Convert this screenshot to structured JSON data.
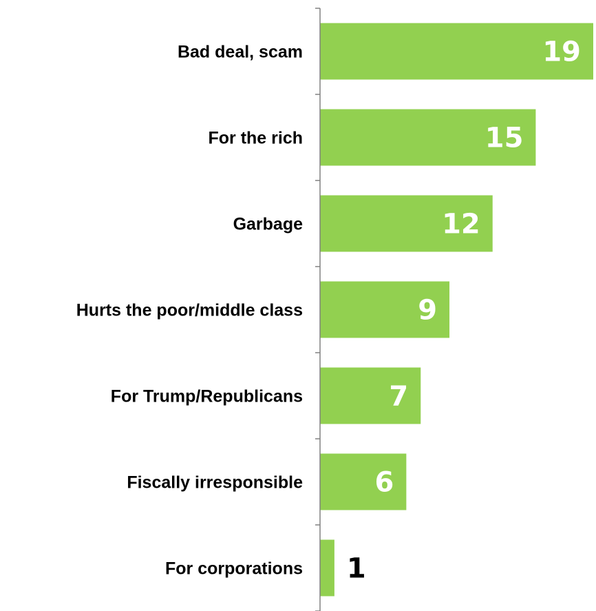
{
  "chart_data": {
    "type": "bar",
    "orientation": "horizontal",
    "categories": [
      "Bad deal, scam",
      "For the rich",
      "Garbage",
      "Hurts the poor/middle class",
      "For Trump/Republicans",
      "Fiscally irresponsible",
      "For corporations"
    ],
    "values": [
      19,
      15,
      12,
      9,
      7,
      6,
      1
    ],
    "value_labels": [
      "19",
      "15",
      "12",
      "9",
      "7",
      "6",
      "1"
    ],
    "xlim": [
      0,
      19
    ],
    "grid": false,
    "legend": "none",
    "colors": {
      "bar": "#92d050",
      "label_inside": "#ffffff",
      "label_outside": "#000000",
      "axis": "#808080"
    }
  }
}
